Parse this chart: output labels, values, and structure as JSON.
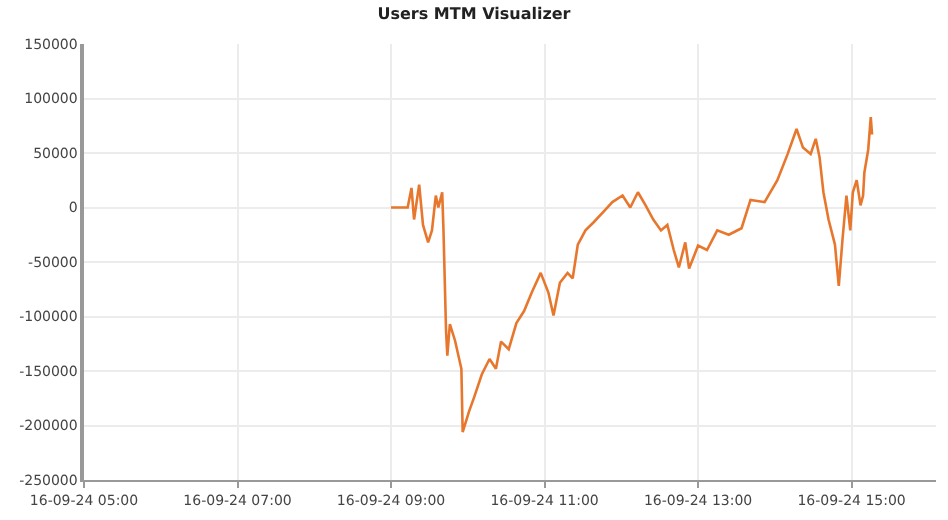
{
  "chart_data": {
    "type": "line",
    "title": "Users MTM Visualizer",
    "x": [
      "--09-16T09:00",
      "--09-16T09:13",
      "--09-16T09:16",
      "--09-16T09:18",
      "--09-16T09:22",
      "--09-16T09:25",
      "--09-16T09:29",
      "--09-16T09:32",
      "--09-16T09:35",
      "--09-16T09:37",
      "--09-16T09:40",
      "--09-16T09:41",
      "--09-16T09:43",
      "--09-16T09:44",
      "--09-16T09:46",
      "--09-16T09:50",
      "--09-16T09:55",
      "--09-16T09:56",
      "--09-16T10:01",
      "--09-16T10:05",
      "--09-16T10:11",
      "--09-16T10:17",
      "--09-16T10:22",
      "--09-16T10:26",
      "--09-16T10:32",
      "--09-16T10:38",
      "--09-16T10:44",
      "--09-16T10:50",
      "--09-16T10:57",
      "--09-16T11:03",
      "--09-16T11:07",
      "--09-16T11:12",
      "--09-16T11:18",
      "--09-16T11:22",
      "--09-16T11:26",
      "--09-16T11:32",
      "--09-16T11:38",
      "--09-16T11:46",
      "--09-16T11:53",
      "--09-16T12:01",
      "--09-16T12:07",
      "--09-16T12:13",
      "--09-16T12:19",
      "--09-16T12:25",
      "--09-16T12:31",
      "--09-16T12:36",
      "--09-16T12:41",
      "--09-16T12:45",
      "--09-16T12:50",
      "--09-16T12:53",
      "--09-16T13:00",
      "--09-16T13:07",
      "--09-16T13:15",
      "--09-16T13:24",
      "--09-16T13:34",
      "--09-16T13:41",
      "--09-16T13:52",
      "--09-16T14:02",
      "--09-16T14:10",
      "--09-16T14:17",
      "--09-16T14:22",
      "--09-16T14:28",
      "--09-16T14:32",
      "--09-16T14:35",
      "--09-16T14:38",
      "--09-16T14:42",
      "--09-16T14:47",
      "--09-16T14:50",
      "--09-16T14:53",
      "--09-16T14:56",
      "--09-16T14:59",
      "--09-16T15:01",
      "--09-16T15:04",
      "--09-16T15:07",
      "--09-16T15:09",
      "--09-16T15:10",
      "--09-16T15:13",
      "--09-16T15:15",
      "--09-16T15:16"
    ],
    "series": [
      {
        "color": "#e8772e",
        "values": [
          0,
          0,
          18000,
          -11000,
          21000,
          -16000,
          -32000,
          -21000,
          11000,
          0,
          14000,
          -21000,
          -113000,
          -136000,
          -107000,
          -122000,
          -148000,
          -206000,
          -187000,
          -174000,
          -153000,
          -139000,
          -148000,
          -123000,
          -130000,
          -106000,
          -95000,
          -78000,
          -60000,
          -78000,
          -99000,
          -69000,
          -60000,
          -65000,
          -34000,
          -21000,
          -14000,
          -4000,
          5000,
          11000,
          0,
          14000,
          2000,
          -11000,
          -21000,
          -16000,
          -39000,
          -55000,
          -32000,
          -56000,
          -35000,
          -39000,
          -21000,
          -25000,
          -19000,
          7000,
          5000,
          25000,
          49000,
          72000,
          55000,
          49000,
          63000,
          46000,
          14000,
          -11000,
          -34000,
          -72000,
          -28000,
          11000,
          -21000,
          14000,
          25000,
          2000,
          11000,
          32000,
          53000,
          83000,
          67000
        ]
      }
    ],
    "xlim": [
      "--09-16T05:00",
      "--09-16T16:06"
    ],
    "xticks": [
      {
        "value": "--09-16T05:00",
        "label": "16-09-24 05:00"
      },
      {
        "value": "--09-16T07:00",
        "label": "16-09-24 07:00"
      },
      {
        "value": "--09-16T09:00",
        "label": "16-09-24 09:00"
      },
      {
        "value": "--09-16T11:00",
        "label": "16-09-24 11:00"
      },
      {
        "value": "--09-16T13:00",
        "label": "16-09-24 13:00"
      },
      {
        "value": "--09-16T15:00",
        "label": "16-09-24 15:00"
      }
    ],
    "ylim": [
      -250000,
      150000
    ],
    "yticks": [
      -250000,
      -200000,
      -150000,
      -100000,
      -50000,
      0,
      50000,
      100000,
      150000
    ],
    "grid": true,
    "marker": "none",
    "line_style": "solid"
  }
}
